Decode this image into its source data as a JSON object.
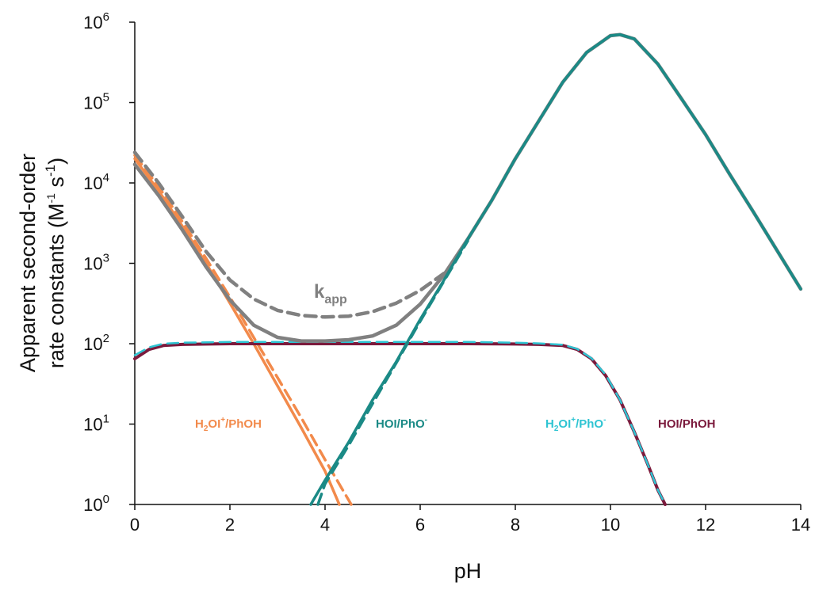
{
  "chart_data": {
    "type": "line",
    "xlabel": "pH",
    "ylabel": "Apparent second-order",
    "ylabel_line2": "rate constants (M",
    "ylabel_line2_sup1": "-1",
    "ylabel_line2_mid": " s",
    "ylabel_line2_sup2": "-1",
    "ylabel_line2_end": ")",
    "y_scale": "log",
    "xlim": [
      0,
      14
    ],
    "ylim": [
      1,
      1000000
    ],
    "x_ticks": [
      "0",
      "2",
      "4",
      "6",
      "8",
      "10",
      "12",
      "14"
    ],
    "y_ticks": [
      {
        "base": "10",
        "exp": "0"
      },
      {
        "base": "10",
        "exp": "1"
      },
      {
        "base": "10",
        "exp": "2"
      },
      {
        "base": "10",
        "exp": "3"
      },
      {
        "base": "10",
        "exp": "4"
      },
      {
        "base": "10",
        "exp": "5"
      },
      {
        "base": "10",
        "exp": "6"
      }
    ],
    "grid": false,
    "legend": "none",
    "annotations": {
      "kapp": {
        "main": "k",
        "sub": "app"
      },
      "h2oi_phoh": {
        "p1": "H",
        "s1": "2",
        "p2": "OI",
        "s2": "+",
        "p3": "/PhOH"
      },
      "hoi_pho": {
        "p1": "HOI/PhO",
        "s1": "-"
      },
      "h2oi_pho": {
        "p1": "H",
        "s1": "2",
        "p2": "OI",
        "s2": "+",
        "p3": "/PhO",
        "s3": "-"
      },
      "hoi_phoh": {
        "p1": "HOI/PhOH"
      }
    },
    "series": [
      {
        "key": "h2oi_phoh_solid",
        "color": "#F28A4B",
        "dash": false,
        "x": [
          0,
          0.5,
          1,
          1.5,
          2,
          2.5,
          3,
          3.5,
          4,
          4.3
        ],
        "y": [
          20000,
          8000,
          2900,
          1000,
          320,
          100,
          30,
          9,
          2.6,
          1
        ]
      },
      {
        "key": "h2oi_phoh_dashed",
        "color": "#F28A4B",
        "dash": true,
        "x": [
          0,
          0.5,
          1,
          1.5,
          2,
          2.5,
          3,
          3.5,
          4,
          4.55
        ],
        "y": [
          22000,
          9000,
          3300,
          1150,
          380,
          120,
          38,
          12,
          3.6,
          1
        ]
      },
      {
        "key": "hoi_pho_solid",
        "color": "#1B8A86",
        "dash": false,
        "x": [
          3.7,
          4,
          4.5,
          5,
          5.5,
          6,
          6.5,
          7,
          7.5,
          8,
          8.5,
          9,
          9.5,
          10,
          10.2,
          10.5,
          11,
          11.5,
          12,
          12.5,
          13,
          13.5,
          14
        ],
        "y": [
          1,
          2,
          6,
          20,
          60,
          200,
          620,
          2000,
          6000,
          20000,
          60000,
          180000,
          420000,
          680000,
          700000,
          620000,
          300000,
          110000,
          40000,
          13000,
          4400,
          1450,
          480
        ]
      },
      {
        "key": "hoi_pho_dashed",
        "color": "#1B8A86",
        "dash": true,
        "x": [
          3.85,
          4,
          4.5,
          5,
          5.5,
          6,
          6.5,
          7
        ],
        "y": [
          1,
          1.8,
          5.5,
          18,
          58,
          190,
          600,
          1900
        ]
      },
      {
        "key": "hoi_phoh",
        "color": "#7B1A3C",
        "dash": false,
        "x": [
          0,
          0.3,
          0.6,
          1,
          2,
          3,
          4,
          5,
          6,
          7,
          8,
          8.5,
          9,
          9.3,
          9.6,
          9.9,
          10.2,
          10.5,
          10.8,
          11,
          11.15
        ],
        "y": [
          65,
          85,
          95,
          98,
          100,
          100,
          100,
          100,
          100,
          100,
          99,
          98,
          95,
          85,
          65,
          40,
          20,
          8,
          3,
          1.5,
          1
        ]
      },
      {
        "key": "h2oi_pho",
        "color": "#2EC4D2",
        "dash": true,
        "x": [
          0,
          0.3,
          0.6,
          1,
          2,
          3,
          4,
          5,
          6,
          7,
          8,
          8.5,
          9,
          9.3,
          9.6,
          9.9,
          10.2,
          10.5,
          10.8,
          11,
          11.15
        ],
        "y": [
          72,
          90,
          100,
          103,
          105,
          105,
          105,
          105,
          105,
          105,
          103,
          101,
          97,
          86,
          66,
          41,
          20,
          8,
          3,
          1.5,
          1
        ]
      },
      {
        "key": "kapp_solid",
        "color": "#808080",
        "dash": false,
        "x": [
          0,
          0.5,
          1,
          1.5,
          2,
          2.5,
          3,
          3.5,
          4,
          4.5,
          5,
          5.5,
          6,
          6.5,
          7,
          7.5,
          8,
          8.5,
          9,
          9.5,
          10,
          10.2,
          10.5,
          11,
          11.5,
          12,
          12.5,
          13,
          13.5,
          14
        ],
        "y": [
          17000,
          7000,
          2600,
          900,
          350,
          170,
          120,
          108,
          108,
          112,
          125,
          170,
          310,
          720,
          2000,
          6000,
          20000,
          60000,
          180000,
          420000,
          680000,
          700000,
          620000,
          300000,
          110000,
          40000,
          13000,
          4400,
          1450,
          480
        ]
      },
      {
        "key": "kapp_dashed",
        "color": "#808080",
        "dash": true,
        "x": [
          0,
          0.5,
          1,
          1.5,
          2,
          2.5,
          3,
          3.5,
          4,
          4.5,
          5,
          5.5,
          6,
          6.5
        ],
        "y": [
          24000,
          10000,
          3800,
          1400,
          620,
          360,
          260,
          225,
          215,
          220,
          250,
          320,
          460,
          750
        ]
      }
    ]
  }
}
